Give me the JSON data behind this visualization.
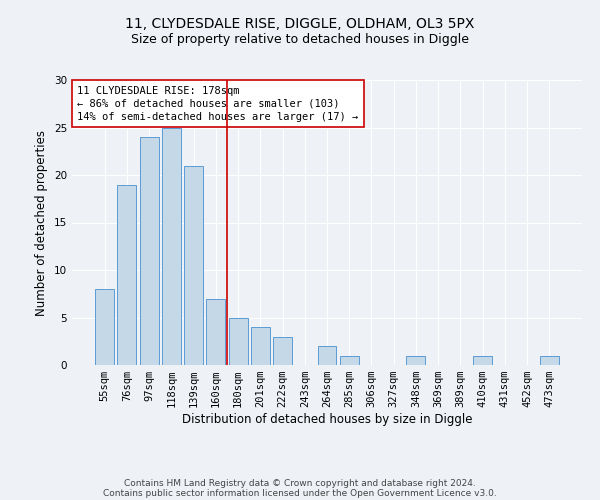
{
  "title": "11, CLYDESDALE RISE, DIGGLE, OLDHAM, OL3 5PX",
  "subtitle": "Size of property relative to detached houses in Diggle",
  "xlabel": "Distribution of detached houses by size in Diggle",
  "ylabel": "Number of detached properties",
  "categories": [
    "55sqm",
    "76sqm",
    "97sqm",
    "118sqm",
    "139sqm",
    "160sqm",
    "180sqm",
    "201sqm",
    "222sqm",
    "243sqm",
    "264sqm",
    "285sqm",
    "306sqm",
    "327sqm",
    "348sqm",
    "369sqm",
    "389sqm",
    "410sqm",
    "431sqm",
    "452sqm",
    "473sqm"
  ],
  "values": [
    8,
    19,
    24,
    25,
    21,
    7,
    5,
    4,
    3,
    0,
    2,
    1,
    0,
    0,
    1,
    0,
    0,
    1,
    0,
    0,
    1
  ],
  "bar_color": "#c5d8e8",
  "bar_edge_color": "#5b9bd5",
  "vline_x_index": 6,
  "vline_color": "#cc0000",
  "annotation_text": "11 CLYDESDALE RISE: 178sqm\n← 86% of detached houses are smaller (103)\n14% of semi-detached houses are larger (17) →",
  "annotation_box_color": "#ffffff",
  "annotation_box_edgecolor": "#cc0000",
  "ylim": [
    0,
    30
  ],
  "yticks": [
    0,
    5,
    10,
    15,
    20,
    25,
    30
  ],
  "footnote_line1": "Contains HM Land Registry data © Crown copyright and database right 2024.",
  "footnote_line2": "Contains public sector information licensed under the Open Government Licence v3.0.",
  "background_color": "#eef2f7",
  "grid_color": "#ffffff",
  "title_fontsize": 10,
  "subtitle_fontsize": 9,
  "axis_label_fontsize": 8.5,
  "tick_fontsize": 7.5,
  "annotation_fontsize": 7.5,
  "footnote_fontsize": 6.5
}
